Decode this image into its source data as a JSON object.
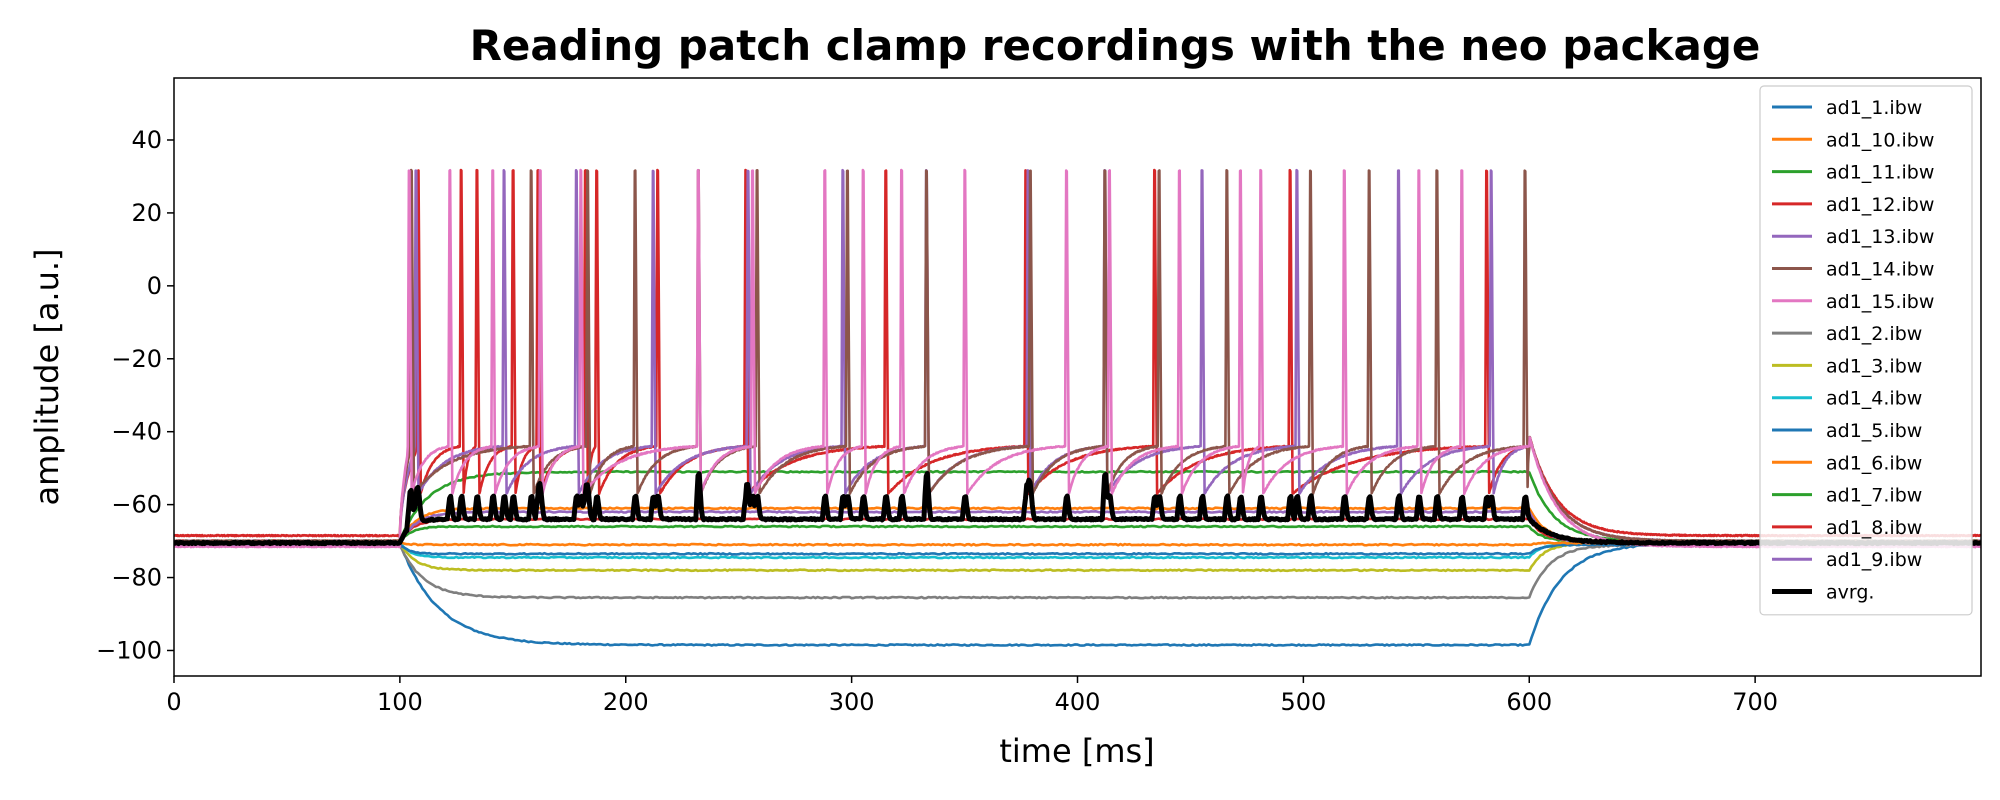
{
  "chart_data": {
    "type": "line",
    "title": "Reading patch clamp recordings with the neo package",
    "xlabel": "time [ms]",
    "ylabel": "amplitude [a.u.]",
    "xlim": [
      0,
      800
    ],
    "ylim": [
      -107,
      57
    ],
    "xticks": [
      0,
      100,
      200,
      300,
      400,
      500,
      600,
      700
    ],
    "yticks": [
      -100,
      -80,
      -60,
      -40,
      -20,
      0,
      20,
      40
    ],
    "xtick_labels": [
      "0",
      "100",
      "200",
      "300",
      "400",
      "500",
      "600",
      "700"
    ],
    "ytick_labels": [
      "−100",
      "−80",
      "−60",
      "−40",
      "−20",
      "0",
      "20",
      "40"
    ],
    "grid": false,
    "legend_position": "top-right",
    "stimulus": {
      "onset_ms": 100,
      "offset_ms": 600
    },
    "series": [
      {
        "name": "ad1_1.ibw",
        "color": "#1f77b4",
        "type": "passive",
        "baseline": -70.5,
        "plateau": -98.5
      },
      {
        "name": "ad1_10.ibw",
        "color": "#ff7f0e",
        "type": "passive",
        "baseline": -70.0,
        "plateau": -61.0
      },
      {
        "name": "ad1_11.ibw",
        "color": "#2ca02c",
        "type": "passive",
        "baseline": -70.0,
        "plateau": -51.0
      },
      {
        "name": "ad1_12.ibw",
        "color": "#d62728",
        "type": "spiking",
        "baseline": -68.5,
        "spike_times": [
          108,
          127,
          134,
          150,
          161,
          182,
          187,
          214,
          253,
          315,
          377,
          434,
          494,
          581
        ]
      },
      {
        "name": "ad1_13.ibw",
        "color": "#9467bd",
        "type": "spiking",
        "baseline": -70.0,
        "spike_times": [
          107,
          146,
          178,
          212,
          254,
          296,
          333,
          378,
          412,
          455,
          497,
          542,
          583
        ]
      },
      {
        "name": "ad1_14.ibw",
        "color": "#8c564b",
        "type": "spiking",
        "baseline": -70.0,
        "spike_times": [
          105,
          158,
          183,
          204,
          232,
          258,
          298,
          333,
          379,
          412,
          436,
          466,
          503,
          529,
          559,
          598
        ]
      },
      {
        "name": "ad1_15.ibw",
        "color": "#e377c2",
        "type": "spiking",
        "baseline": -71.5,
        "spike_times": [
          104,
          122,
          141,
          162,
          180,
          232,
          256,
          288,
          305,
          322,
          350,
          395,
          414,
          445,
          472,
          481,
          518,
          551,
          570
        ]
      },
      {
        "name": "ad1_2.ibw",
        "color": "#7f7f7f",
        "type": "passive",
        "baseline": -71.0,
        "plateau": -85.5
      },
      {
        "name": "ad1_3.ibw",
        "color": "#bcbd22",
        "type": "passive",
        "baseline": -70.5,
        "plateau": -78.0
      },
      {
        "name": "ad1_4.ibw",
        "color": "#17becf",
        "type": "passive",
        "baseline": -70.5,
        "plateau": -74.5
      },
      {
        "name": "ad1_5.ibw",
        "color": "#1f77b4",
        "type": "passive",
        "baseline": -71.0,
        "plateau": -73.5
      },
      {
        "name": "ad1_6.ibw",
        "color": "#ff7f0e",
        "type": "passive",
        "baseline": -70.5,
        "plateau": -71.0
      },
      {
        "name": "ad1_7.ibw",
        "color": "#2ca02c",
        "type": "passive",
        "baseline": -70.0,
        "plateau": -66.0
      },
      {
        "name": "ad1_8.ibw",
        "color": "#d62728",
        "type": "passive",
        "baseline": -70.0,
        "plateau": -64.0
      },
      {
        "name": "ad1_9.ibw",
        "color": "#9467bd",
        "type": "passive",
        "baseline": -70.5,
        "plateau": -62.0
      },
      {
        "name": "avrg.",
        "color": "#000000",
        "type": "average",
        "baseline": -70.5,
        "plateau": -64.0
      }
    ]
  }
}
